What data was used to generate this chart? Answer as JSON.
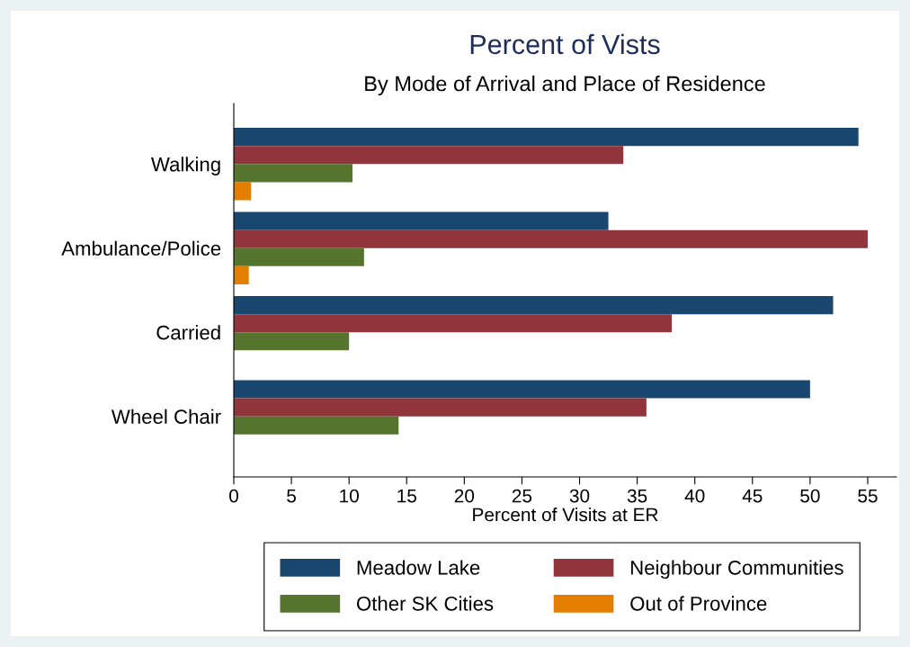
{
  "chart_data": {
    "type": "bar",
    "orientation": "horizontal",
    "title": "Percent of Vists",
    "subtitle": "By Mode of Arrival and Place of Residence",
    "xlabel": "Percent of Visits at ER",
    "categories": [
      "Walking",
      "Ambulance/Police",
      "Carried",
      "Wheel Chair"
    ],
    "series": [
      {
        "name": "Meadow Lake",
        "color": "#1a476f",
        "values": [
          54.2,
          32.5,
          52.0,
          50.0
        ]
      },
      {
        "name": "Neighbour Communities",
        "color": "#90353b",
        "values": [
          33.8,
          55.0,
          38.0,
          35.8
        ]
      },
      {
        "name": "Other SK Cities",
        "color": "#55752f",
        "values": [
          10.3,
          11.3,
          10.0,
          14.3
        ]
      },
      {
        "name": "Out of Province",
        "color": "#e37e00",
        "values": [
          1.5,
          1.3,
          null,
          null
        ]
      }
    ],
    "xlim": [
      0,
      57.5
    ],
    "xticks": [
      0,
      5,
      10,
      15,
      20,
      25,
      30,
      35,
      40,
      45,
      50,
      55
    ],
    "grid": false,
    "legend": "bottom"
  }
}
